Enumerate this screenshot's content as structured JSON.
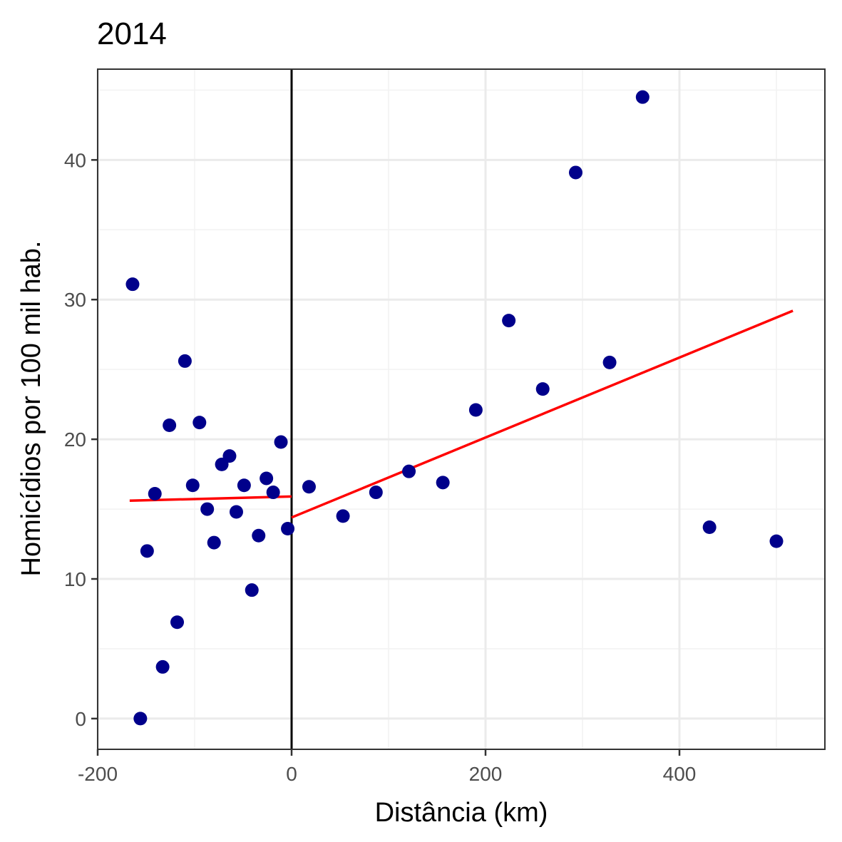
{
  "chart_data": {
    "type": "scatter",
    "title": "2014",
    "xlabel": "Distância (km)",
    "ylabel": "Homicídios por 100 mil hab.",
    "xlim": [
      -200,
      550
    ],
    "ylim": [
      -2.2,
      46.5
    ],
    "x_ticks": [
      -200,
      0,
      200,
      400
    ],
    "x_tick_labels": [
      "-200",
      "0",
      "200",
      "400"
    ],
    "y_ticks": [
      0,
      10,
      20,
      30,
      40
    ],
    "y_tick_labels": [
      "0",
      "10",
      "20",
      "30",
      "40"
    ],
    "grid": true,
    "colors": {
      "points": "#00008B",
      "fit": "#FF0000",
      "cutoff": "#000000"
    },
    "cutoff_x": 0,
    "points": [
      {
        "x": -164,
        "y": 31.1
      },
      {
        "x": -156,
        "y": 0.0
      },
      {
        "x": -149,
        "y": 12.0
      },
      {
        "x": -141,
        "y": 16.1
      },
      {
        "x": -133,
        "y": 3.7
      },
      {
        "x": -126,
        "y": 21.0
      },
      {
        "x": -118,
        "y": 6.9
      },
      {
        "x": -110,
        "y": 25.6
      },
      {
        "x": -102,
        "y": 16.7
      },
      {
        "x": -95,
        "y": 21.2
      },
      {
        "x": -87,
        "y": 15.0
      },
      {
        "x": -80,
        "y": 12.6
      },
      {
        "x": -72,
        "y": 18.2
      },
      {
        "x": -64,
        "y": 18.8
      },
      {
        "x": -57,
        "y": 14.8
      },
      {
        "x": -49,
        "y": 16.7
      },
      {
        "x": -41,
        "y": 9.2
      },
      {
        "x": -34,
        "y": 13.1
      },
      {
        "x": -26,
        "y": 17.2
      },
      {
        "x": -19,
        "y": 16.2
      },
      {
        "x": -11,
        "y": 19.8
      },
      {
        "x": -4,
        "y": 13.6
      },
      {
        "x": 18,
        "y": 16.6
      },
      {
        "x": 53,
        "y": 14.5
      },
      {
        "x": 87,
        "y": 16.2
      },
      {
        "x": 121,
        "y": 17.7
      },
      {
        "x": 156,
        "y": 16.9
      },
      {
        "x": 190,
        "y": 22.1
      },
      {
        "x": 224,
        "y": 28.5
      },
      {
        "x": 259,
        "y": 23.6
      },
      {
        "x": 293,
        "y": 39.1
      },
      {
        "x": 328,
        "y": 25.5
      },
      {
        "x": 362,
        "y": 44.5
      },
      {
        "x": 431,
        "y": 13.7
      },
      {
        "x": 500,
        "y": 12.7
      }
    ],
    "fit_lines": [
      {
        "x": [
          -167,
          0
        ],
        "y": [
          15.6,
          15.9
        ]
      },
      {
        "x": [
          0,
          517
        ],
        "y": [
          14.4,
          29.2
        ]
      }
    ]
  }
}
